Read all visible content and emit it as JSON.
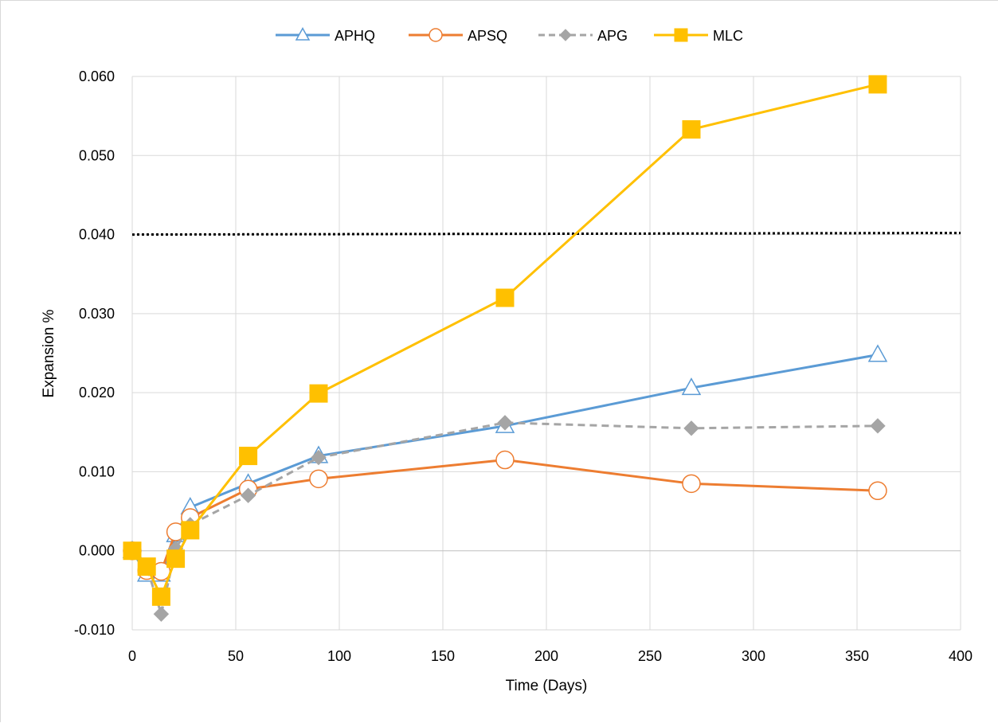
{
  "chart_data": {
    "type": "line",
    "title": "",
    "xlabel": "Time (Days)",
    "ylabel": "Expansion %",
    "xlim": [
      0,
      400
    ],
    "ylim": [
      -0.01,
      0.06
    ],
    "x_ticks": [
      "0",
      "50",
      "100",
      "150",
      "200",
      "250",
      "300",
      "350",
      "400"
    ],
    "y_ticks": [
      "-0.010",
      "0.000",
      "0.010",
      "0.020",
      "0.030",
      "0.040",
      "0.050",
      "0.060"
    ],
    "grid": true,
    "legend_position": "top",
    "reference_line": {
      "y": 0.04,
      "style": "dotted",
      "color": "#000000"
    },
    "series": [
      {
        "name": "APHQ",
        "color": "#5b9bd5",
        "marker": "triangle-open",
        "dash": "solid",
        "x": [
          0,
          7,
          14,
          21,
          28,
          56,
          90,
          180,
          270,
          360
        ],
        "y": [
          0.0,
          -0.003,
          -0.003,
          0.002,
          0.0055,
          0.0085,
          0.012,
          0.0158,
          0.0206,
          0.0248
        ]
      },
      {
        "name": "APSQ",
        "color": "#ed7d31",
        "marker": "circle-open",
        "dash": "solid",
        "x": [
          0,
          7,
          14,
          21,
          28,
          56,
          90,
          180,
          270,
          360
        ],
        "y": [
          0.0,
          -0.0025,
          -0.0026,
          0.0024,
          0.0042,
          0.0078,
          0.0091,
          0.0115,
          0.0085,
          0.0076
        ]
      },
      {
        "name": "APG",
        "color": "#a5a5a5",
        "marker": "diamond-filled",
        "dash": "dashed",
        "x": [
          0,
          7,
          14,
          21,
          28,
          56,
          90,
          180,
          270,
          360
        ],
        "y": [
          0.0,
          -0.002,
          -0.008,
          0.0003,
          0.0033,
          0.007,
          0.0118,
          0.0162,
          0.0155,
          0.0158
        ]
      },
      {
        "name": "MLC",
        "color": "#ffc000",
        "marker": "square-filled",
        "dash": "solid",
        "x": [
          0,
          7,
          14,
          21,
          28,
          56,
          90,
          180,
          270,
          360
        ],
        "y": [
          0.0,
          -0.002,
          -0.0058,
          -0.001,
          0.0026,
          0.012,
          0.0199,
          0.032,
          0.0533,
          0.059
        ]
      }
    ]
  }
}
